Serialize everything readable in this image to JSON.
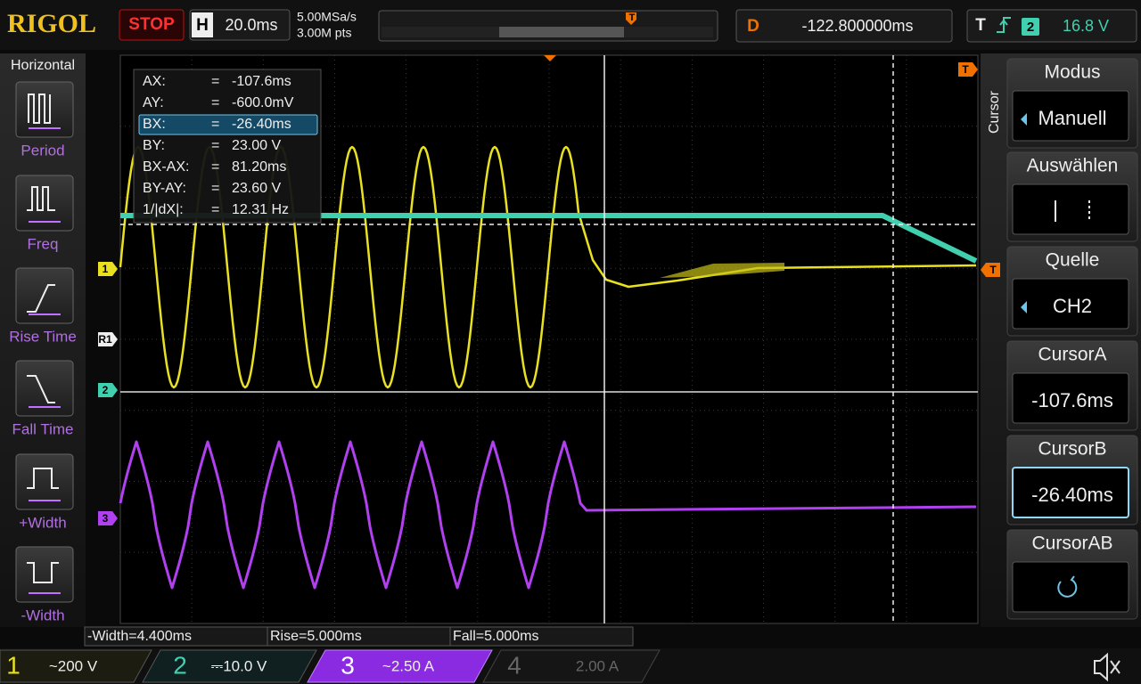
{
  "top_bar": {
    "logo": "RIGOL",
    "run_state": "STOP",
    "horizontal": {
      "label": "H",
      "timebase": "20.0ms"
    },
    "sample_rate": "5.00MSa/s",
    "memory_depth": "3.00M pts",
    "delay": {
      "label": "D",
      "value": "-122.800000ms"
    },
    "trigger": {
      "label": "T",
      "source": "2",
      "level": "16.8 V"
    }
  },
  "left_menu": {
    "title": "Horizontal",
    "items": [
      "Period",
      "Freq",
      "Rise Time",
      "Fall Time",
      "+Width",
      "-Width"
    ]
  },
  "cursor_readout": {
    "rows": [
      {
        "label": "AX:",
        "sep": "=",
        "value": "-107.6ms"
      },
      {
        "label": "AY:",
        "sep": "=",
        "value": "-600.0mV"
      },
      {
        "label": "BX:",
        "sep": "=",
        "value": "-26.40ms"
      },
      {
        "label": "BY:",
        "sep": "=",
        "value": "23.00 V"
      },
      {
        "label": "BX-AX:",
        "sep": "=",
        "value": "81.20ms"
      },
      {
        "label": "BY-AY:",
        "sep": "=",
        "value": "23.60 V"
      },
      {
        "label": "1/|dX|:",
        "sep": "=",
        "value": "12.31 Hz"
      }
    ]
  },
  "channel_markers": {
    "ch1": "1",
    "ref1": "R1",
    "ch2": "2",
    "ch3": "3",
    "trigger_level": "T",
    "trigger_offset": "T",
    "trigger_position": "T"
  },
  "right_menu": {
    "title": "Cursor",
    "items": [
      {
        "label": "Modus",
        "value": "Manuell"
      },
      {
        "label": "Auswählen"
      },
      {
        "label": "Quelle",
        "value": "CH2"
      },
      {
        "label": "CursorA",
        "value": "-107.6ms"
      },
      {
        "label": "CursorB",
        "value": "-26.40ms"
      },
      {
        "label": "CursorAB"
      }
    ]
  },
  "measurements": [
    "-Width=4.400ms",
    "Rise=5.000ms",
    "Fall=5.000ms"
  ],
  "channels": [
    {
      "number": "1",
      "setting": "~200 V"
    },
    {
      "number": "2",
      "setting": "⎓10.0 V"
    },
    {
      "number": "3",
      "setting": "~2.50 A"
    },
    {
      "number": "4",
      "setting": "2.00 A"
    }
  ]
}
